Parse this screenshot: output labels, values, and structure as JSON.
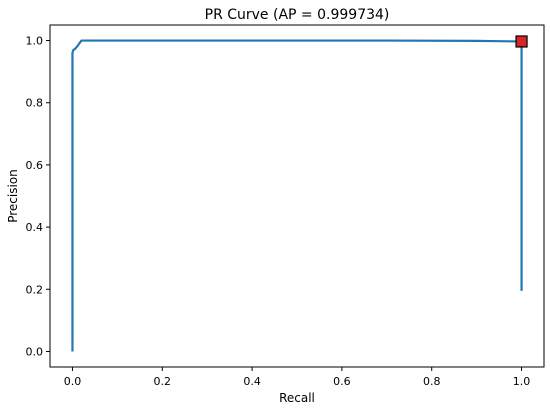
{
  "chart_data": {
    "type": "line",
    "title": "PR Curve (AP = 0.999734)",
    "xlabel": "Recall",
    "ylabel": "Precision",
    "xlim": [
      -0.05,
      1.05
    ],
    "ylim": [
      -0.05,
      1.05
    ],
    "xticks": [
      0.0,
      0.2,
      0.4,
      0.6,
      0.8,
      1.0
    ],
    "yticks": [
      0.0,
      0.2,
      0.4,
      0.6,
      0.8,
      1.0
    ],
    "xtick_labels": [
      "0.0",
      "0.2",
      "0.4",
      "0.6",
      "0.8",
      "1.0"
    ],
    "ytick_labels": [
      "0.0",
      "0.2",
      "0.4",
      "0.6",
      "0.8",
      "1.0"
    ],
    "grid": false,
    "series": [
      {
        "color": "#1f77b4",
        "x": [
          0.0,
          0.0,
          0.002,
          0.005,
          0.01,
          0.015,
          0.02,
          0.1,
          0.3,
          0.5,
          0.7,
          0.9,
          0.95,
          1.0,
          1.0
        ],
        "y": [
          0.0,
          0.96,
          0.97,
          0.972,
          0.98,
          0.99,
          1.0,
          1.0,
          1.0,
          1.0,
          1.0,
          0.999,
          0.998,
          0.997,
          0.195
        ]
      }
    ],
    "marker": {
      "shape": "square",
      "x": 1.0,
      "y": 0.997,
      "fill": "#d62728",
      "edge": "#000000"
    }
  }
}
